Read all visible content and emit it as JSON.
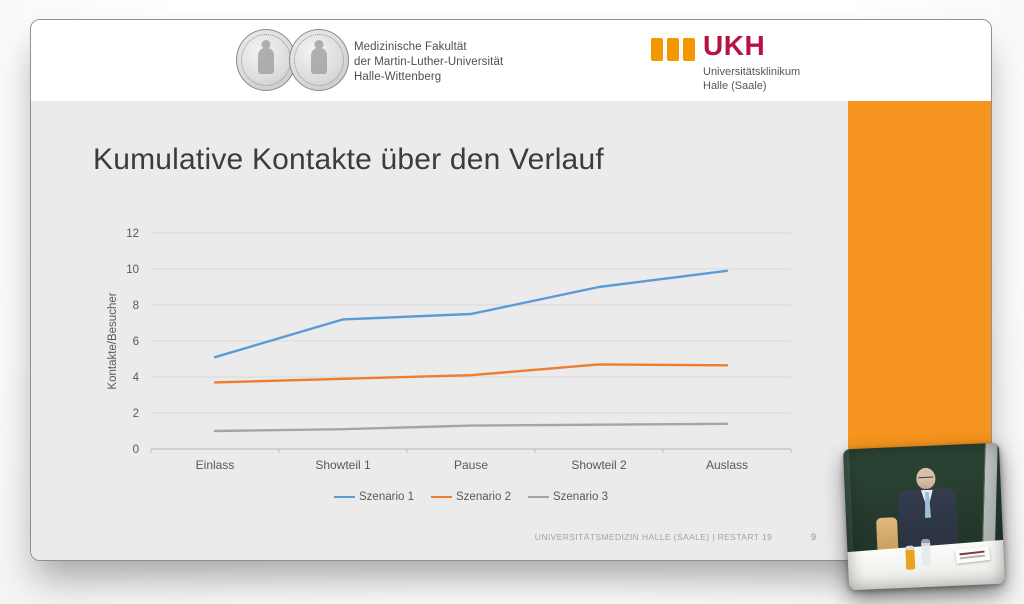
{
  "header": {
    "faculty": {
      "lines": [
        "Medizinische Fakultät",
        "der Martin-Luther-Universität",
        "Halle-Wittenberg"
      ]
    },
    "ukh": {
      "acronym": "UKH",
      "lines": [
        "Universitätsklinikum",
        "Halle (Saale)"
      ],
      "bar_color": "#F49800",
      "acronym_color": "#B81243"
    }
  },
  "slide": {
    "title": "Kumulative Kontakte über den Verlauf",
    "footer": "UNIVERSITÄTSMEDIZIN HALLE (SAALE) | RESTART 19",
    "page_number": "9",
    "accent_color": "#F5941E",
    "background_color": "#EBEBEB"
  },
  "chart_data": {
    "type": "line",
    "title": "",
    "categories": [
      "Einlass",
      "Showteil 1",
      "Pause",
      "Showteil 2",
      "Auslass"
    ],
    "series": [
      {
        "name": "Szenario 1",
        "color": "#5B9BD5",
        "values": [
          5.1,
          7.2,
          7.5,
          9.0,
          9.9
        ]
      },
      {
        "name": "Szenario 2",
        "color": "#ED7D31",
        "values": [
          3.7,
          3.9,
          4.1,
          4.7,
          4.65
        ]
      },
      {
        "name": "Szenario 3",
        "color": "#A5A5A5",
        "values": [
          1.0,
          1.1,
          1.3,
          1.35,
          1.4
        ]
      }
    ],
    "xlabel": "",
    "ylabel": "Kontakte/Besucher",
    "ylim": [
      0,
      12
    ],
    "ytick_step": 2,
    "grid": true,
    "legend_position": "bottom"
  }
}
